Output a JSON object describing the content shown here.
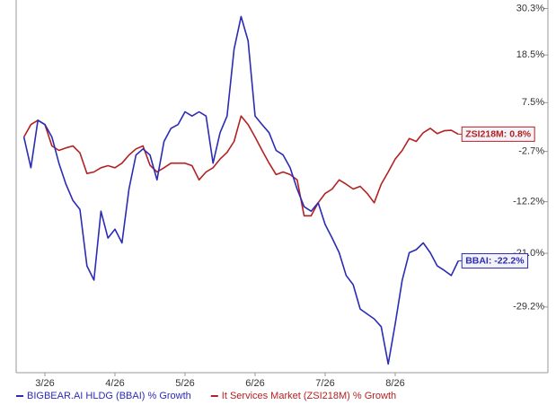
{
  "chart_data": {
    "type": "line",
    "categories": [
      null,
      null,
      null,
      "3/26",
      null,
      null,
      null,
      null,
      null,
      null,
      null,
      null,
      null,
      "4/26",
      null,
      null,
      null,
      null,
      null,
      null,
      null,
      null,
      null,
      "5/26",
      null,
      null,
      null,
      null,
      null,
      null,
      null,
      null,
      null,
      "6/26",
      null,
      null,
      null,
      null,
      null,
      null,
      null,
      null,
      null,
      "7/26",
      null,
      null,
      null,
      null,
      null,
      null,
      null,
      null,
      null,
      "8/26",
      null,
      null,
      null,
      null,
      null,
      null,
      null,
      null,
      null
    ],
    "series": [
      {
        "name": "BIGBEAR.AI HLDG (BBAI) % Growth",
        "color": "#2b2bb5",
        "end_label": "BBAI: -22.2%",
        "values": [
          0.2,
          -5.9,
          3.7,
          2.8,
          0.2,
          -5.0,
          -9.0,
          -12.0,
          -13.6,
          -23.0,
          -25.2,
          -13.9,
          -18.5,
          -17.0,
          -19.3,
          -9.9,
          -3.4,
          -2.2,
          -3.4,
          -8.2,
          -0.7,
          2.0,
          2.8,
          5.5,
          4.6,
          5.5,
          4.6,
          -5.0,
          1.1,
          4.6,
          19.9,
          28.2,
          22.0,
          4.6,
          2.8,
          1.1,
          -2.5,
          -3.4,
          -5.9,
          -9.9,
          -13.1,
          -13.9,
          -12.4,
          -16.2,
          -18.5,
          -20.9,
          -24.5,
          -25.9,
          -29.5,
          -30.2,
          -30.9,
          -32.0,
          -37.0,
          -31.6,
          -25.2,
          -20.9,
          -20.4,
          -19.3,
          -20.9,
          -23.0,
          -23.7,
          -24.5,
          -22.2
        ]
      },
      {
        "name": "It Services Market (ZSI218M) % Growth",
        "color": "#b22222",
        "end_label": "ZSI218M: 0.8%",
        "values": [
          0.2,
          2.8,
          3.7,
          2.8,
          -1.6,
          -2.5,
          -2.0,
          -1.6,
          -3.0,
          -7.0,
          -6.7,
          -5.9,
          -5.5,
          -5.9,
          -5.0,
          -3.4,
          -2.2,
          -1.6,
          -5.4,
          -6.7,
          -5.9,
          -5.0,
          -5.0,
          -5.0,
          -5.5,
          -8.2,
          -6.7,
          -5.9,
          -4.2,
          -2.9,
          -0.7,
          4.6,
          2.8,
          0.2,
          -2.5,
          -5.0,
          -7.2,
          -6.7,
          -7.2,
          -8.2,
          -14.7,
          -14.7,
          -12.4,
          -10.7,
          -9.9,
          -8.2,
          -9.0,
          -9.9,
          -9.4,
          -10.7,
          -12.4,
          -9.0,
          -6.7,
          -4.2,
          -2.5,
          -0.1,
          -0.7,
          1.1,
          2.0,
          0.9,
          1.5,
          1.6,
          0.8
        ]
      }
    ],
    "ylim": [
      -38.1,
      32.6
    ],
    "yscale": "log",
    "yticks": [
      {
        "value": 30.3,
        "label": "30.3%"
      },
      {
        "value": 18.5,
        "label": "18.5%"
      },
      {
        "value": 7.5,
        "label": "7.5%"
      },
      {
        "value": -2.7,
        "label": "-2.7%"
      },
      {
        "value": -12.2,
        "label": "-12.2%"
      },
      {
        "value": -21.0,
        "label": "-21.0%"
      },
      {
        "value": -29.2,
        "label": "-29.2%"
      }
    ]
  }
}
